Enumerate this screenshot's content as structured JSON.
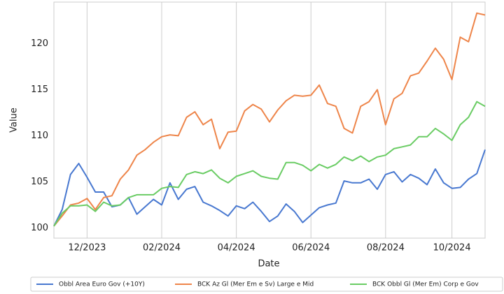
{
  "chart_data": {
    "type": "line",
    "x_label": "Date",
    "y_label": "Value",
    "categories": [
      null,
      null,
      null,
      null,
      "12/2023",
      null,
      null,
      null,
      null,
      null,
      null,
      null,
      null,
      "02/2024",
      null,
      null,
      null,
      null,
      null,
      null,
      null,
      null,
      "04/2024",
      null,
      null,
      null,
      null,
      null,
      null,
      null,
      null,
      "06/2024",
      null,
      null,
      null,
      null,
      null,
      null,
      null,
      null,
      "08/2024",
      null,
      null,
      null,
      null,
      null,
      null,
      null,
      "10/2024",
      null,
      null,
      null,
      null
    ],
    "series": [
      {
        "name": "Obbl Area Euro Gov (+10Y)",
        "color": "#4878d0",
        "values": [
          100.2,
          102,
          105.8,
          107,
          105.5,
          103.9,
          103.9,
          102.3,
          102.5,
          103.3,
          101.5,
          102.3,
          103.1,
          102.5,
          104.9,
          103.1,
          104.2,
          104.5,
          102.8,
          102.4,
          101.9,
          101.3,
          102.4,
          102.1,
          102.8,
          101.8,
          100.7,
          101.3,
          102.6,
          101.8,
          100.6,
          101.4,
          102.2,
          102.5,
          102.7,
          105.1,
          104.9,
          104.9,
          105.3,
          104.2,
          105.8,
          106.1,
          105,
          105.8,
          105.4,
          104.7,
          106.4,
          104.9,
          104.3,
          104.4,
          105.3,
          105.9,
          108.5
        ]
      },
      {
        "name": "BCK Az Gl (Mer Em e Sv) Large e Mid",
        "color": "#ee854a",
        "values": [
          100.2,
          101.3,
          102.5,
          102.7,
          103.2,
          102,
          103.3,
          103.5,
          105.3,
          106.3,
          107.9,
          108.5,
          109.3,
          109.9,
          110.1,
          110,
          112,
          112.6,
          111.2,
          111.8,
          108.6,
          110.4,
          110.5,
          112.7,
          113.4,
          112.9,
          111.5,
          112.8,
          113.8,
          114.4,
          114.3,
          114.4,
          115.5,
          113.5,
          113.2,
          110.8,
          110.3,
          113.2,
          113.7,
          115,
          111.2,
          114,
          114.6,
          116.5,
          116.8,
          118.1,
          119.5,
          118.3,
          116.1,
          120.7,
          120.2,
          123.3,
          123.1
        ]
      },
      {
        "name": "BCK Obbl Gl (Mer Em) Corp e Gov",
        "color": "#6acc64",
        "values": [
          100.2,
          101.6,
          102.4,
          102.4,
          102.5,
          101.8,
          102.8,
          102.4,
          102.5,
          103.3,
          103.6,
          103.6,
          103.6,
          104.3,
          104.5,
          104.4,
          105.8,
          106.1,
          105.9,
          106.3,
          105.4,
          104.9,
          105.6,
          105.9,
          106.2,
          105.6,
          105.4,
          105.3,
          107.1,
          107.1,
          106.8,
          106.2,
          106.9,
          106.5,
          106.9,
          107.7,
          107.3,
          107.8,
          107.2,
          107.7,
          107.9,
          108.6,
          108.8,
          109,
          109.9,
          109.9,
          110.8,
          110.2,
          109.5,
          111.2,
          112,
          113.7,
          113.2
        ]
      }
    ],
    "ylim": [
      98.9,
      124.5
    ],
    "yticks": [
      100,
      105,
      110,
      115,
      120
    ],
    "grid": "x",
    "legend": "bottom"
  }
}
